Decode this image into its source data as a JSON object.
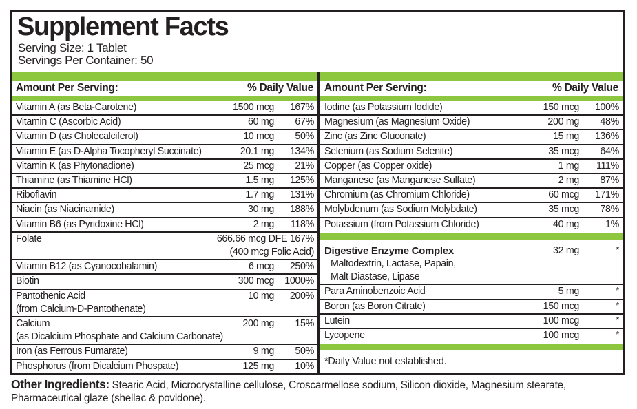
{
  "panel": {
    "title": "Supplement Facts",
    "serving_size": "Serving Size: 1 Tablet",
    "servings_per_container": "Servings Per Container: 50",
    "column_header": {
      "amount_label": "Amount Per Serving:",
      "dv_label": "% Daily Value"
    },
    "columns": {
      "left": {
        "rows": [
          {
            "name": "Vitamin A (as Beta-Carotene)",
            "amount": "1500 mcg",
            "dv": "167%"
          },
          {
            "name": "Vitamin C (Ascorbic Acid)",
            "amount": "60 mg",
            "dv": "67%"
          },
          {
            "name": "Vitamin D (as Cholecalciferol)",
            "amount": "10 mcg",
            "dv": "50%"
          },
          {
            "name": "Vitamin E (as D-Alpha Tocopheryl Succinate)",
            "amount": "20.1 mg",
            "dv": "134%"
          },
          {
            "name": "Vitamin K (as Phytonadione)",
            "amount": "25 mcg",
            "dv": "21%"
          },
          {
            "name": "Thiamine (as Thiamine HCl)",
            "amount": "1.5 mg",
            "dv": "125%"
          },
          {
            "name": "Riboflavin",
            "amount": "1.7 mg",
            "dv": "131%"
          },
          {
            "name": "Niacin (as Niacinamide)",
            "amount": "30 mg",
            "dv": "188%"
          },
          {
            "name": "Vitamin B6 (as Pyridoxine HCl)",
            "amount": "2 mg",
            "dv": "118%"
          },
          {
            "name": "Folate",
            "amount": "666.66 mcg DFE 167%",
            "wide": true,
            "sub": [
              {
                "text": "(400 mcg Folic Acid)",
                "align": "right"
              }
            ]
          },
          {
            "name": "Vitamin B12 (as Cyanocobalamin)",
            "amount": "6 mcg",
            "dv": "250%"
          },
          {
            "name": "Biotin",
            "amount": "300 mcg",
            "dv": "1000%"
          },
          {
            "name": "Pantothenic Acid",
            "amount": "10 mg",
            "dv": "200%",
            "sub": [
              {
                "text": "(from Calcium-D-Pantothenate)",
                "align": "left"
              }
            ]
          },
          {
            "name": "Calcium",
            "amount": "200 mg",
            "dv": "15%",
            "sub": [
              {
                "text": "(as Dicalcium Phosphate and Calcium Carbonate)",
                "align": "left"
              }
            ]
          },
          {
            "name": "Iron (as Ferrous Fumarate)",
            "amount": "9 mg",
            "dv": "50%"
          },
          {
            "name": "Phosphorus (from Dicalcium Phospate)",
            "amount": "125 mg",
            "dv": "10%",
            "rule_below": false
          }
        ]
      },
      "right": {
        "rows": [
          {
            "name": "Iodine (as Potassium Iodide)",
            "amount": "150 mcg",
            "dv": "100%"
          },
          {
            "name": "Magnesium (as Magnesium Oxide)",
            "amount": "200 mg",
            "dv": "48%"
          },
          {
            "name": "Zinc (as Zinc Gluconate)",
            "amount": "15 mg",
            "dv": "136%"
          },
          {
            "name": "Selenium (as Sodium Selenite)",
            "amount": "35 mcg",
            "dv": "64%"
          },
          {
            "name": "Copper (as Copper oxide)",
            "amount": "1 mg",
            "dv": "111%"
          },
          {
            "name": "Manganese (as Manganese Sulfate)",
            "amount": "2 mg",
            "dv": "87%"
          },
          {
            "name": "Chromium (as Chromium Chloride)",
            "amount": "60 mcg",
            "dv": "171%"
          },
          {
            "name": "Molybdenum (as Sodium Molybdate)",
            "amount": "35 mcg",
            "dv": "78%"
          },
          {
            "name": "Potassium (from Potassium Chloride)",
            "amount": "40 mg",
            "dv": "1%",
            "rule_below": false
          },
          {
            "type": "greenbar"
          },
          {
            "name": "Digestive Enzyme Complex",
            "bold": true,
            "padded": true,
            "amount": "32 mg",
            "dv": "*",
            "sub": [
              {
                "text": "Maltodextrin, Lactase, Papain,",
                "align": "left",
                "indent": true
              },
              {
                "text": "Malt Diastase, Lipase",
                "align": "left",
                "indent": true
              }
            ]
          },
          {
            "name": "Para Aminobenzoic Acid",
            "amount": "5 mg",
            "dv": "*"
          },
          {
            "name": "Boron (as Boron Citrate)",
            "amount": "150 mcg",
            "dv": "*"
          },
          {
            "name": "Lutein",
            "amount": "100 mcg",
            "dv": "*"
          },
          {
            "name": "Lycopene",
            "amount": "100 mcg",
            "dv": "*",
            "rule_below": false
          },
          {
            "type": "greenbar"
          },
          {
            "type": "note",
            "text": "*Daily Value not established."
          }
        ]
      }
    }
  },
  "footer": {
    "other_ingredients_label": "Other Ingredients:",
    "other_ingredients_text": " Stearic Acid, Microcrystalline cellulose, Croscarmellose sodium, Silicon dioxide, Magnesium stearate, Pharmaceutical glaze (shellac & povidone)."
  },
  "colors": {
    "accent_green": "#8dc63f",
    "ink": "#231f20"
  }
}
